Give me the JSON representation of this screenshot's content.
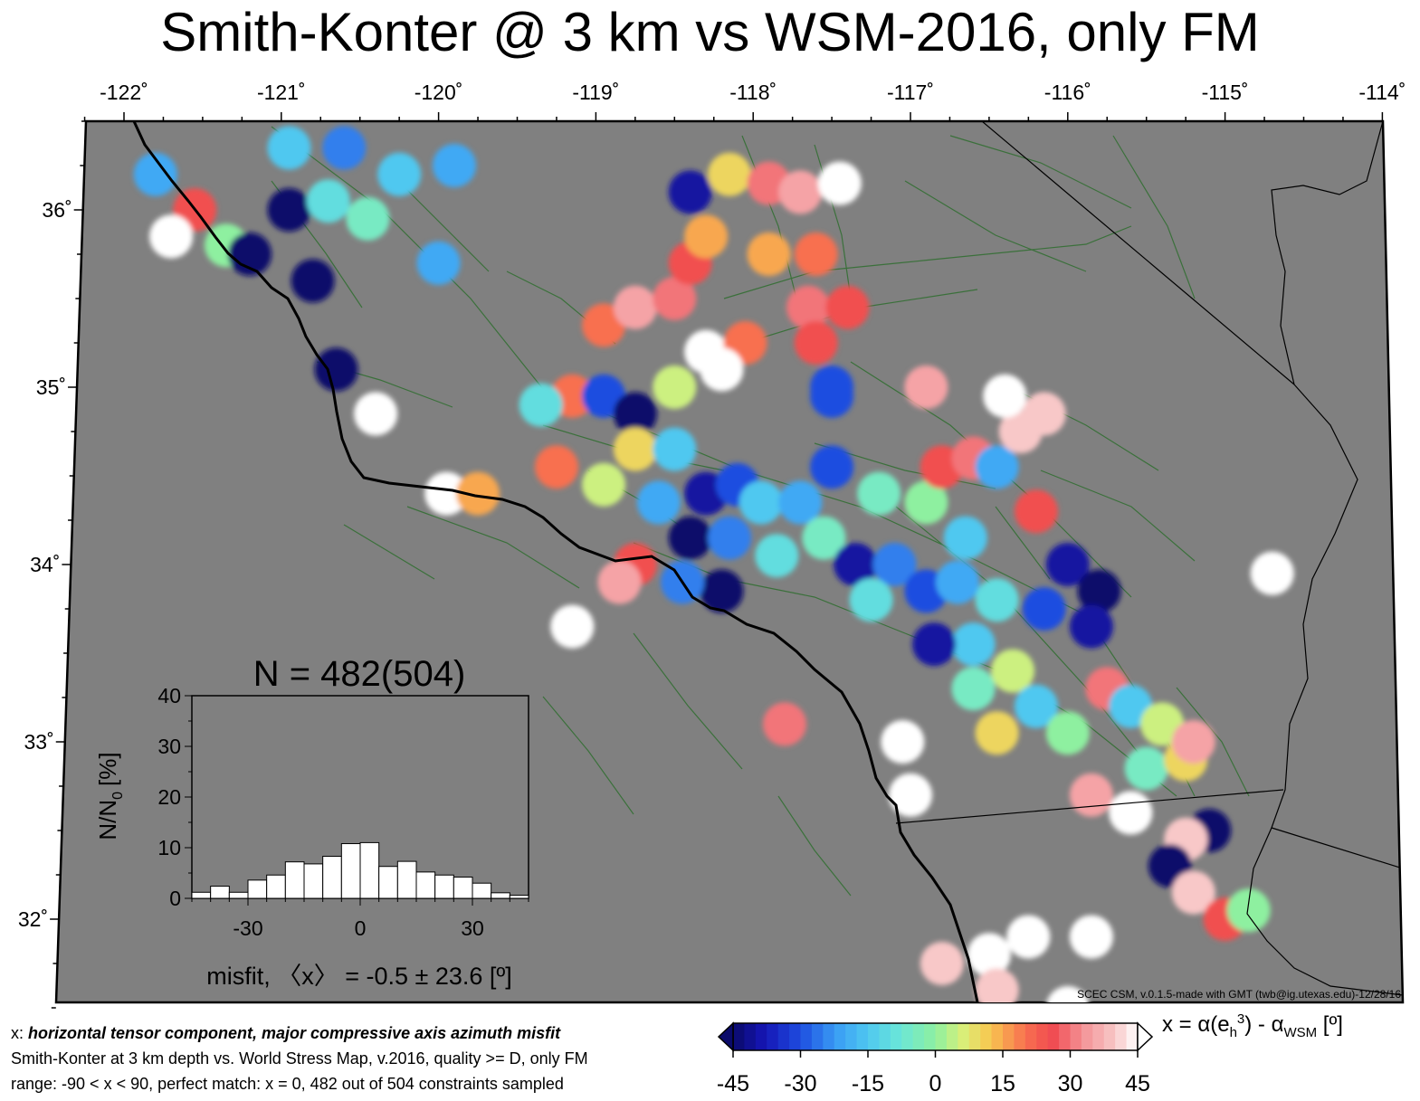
{
  "title": "Smith-Konter @ 3 km vs WSM-2016, only FM",
  "map": {
    "lon_range": [
      -122.25,
      -113.94
    ],
    "lat_range": [
      31.5,
      36.5
    ],
    "lon_ticks": [
      {
        "value": -122,
        "label": "-122˚"
      },
      {
        "value": -121,
        "label": "-121˚"
      },
      {
        "value": -120,
        "label": "-120˚"
      },
      {
        "value": -119,
        "label": "-119˚"
      },
      {
        "value": -118,
        "label": "-118˚"
      },
      {
        "value": -117,
        "label": "-117˚"
      },
      {
        "value": -116,
        "label": "-116˚"
      },
      {
        "value": -115,
        "label": "-115˚"
      },
      {
        "value": -114,
        "label": "-114˚"
      }
    ],
    "lat_ticks": [
      {
        "value": 36,
        "label": "36˚"
      },
      {
        "value": 35,
        "label": "35˚"
      },
      {
        "value": 34,
        "label": "34˚"
      },
      {
        "value": 33,
        "label": "33˚"
      },
      {
        "value": 32,
        "label": "32˚"
      }
    ],
    "background_color": "#808080",
    "land_ocean_color": "#808080",
    "fault_color": "#2f6e2f",
    "coast_color": "#000000",
    "credit": "SCEC CSM, v.0.1.5-made with GMT (twb@ig.utexas.edu)-12/28/16"
  },
  "misfit_patches": [
    {
      "lon": -121.8,
      "lat": 36.2,
      "value": -20
    },
    {
      "lon": -121.55,
      "lat": 36.0,
      "value": 25
    },
    {
      "lon": -121.7,
      "lat": 35.85,
      "value": 45
    },
    {
      "lon": -121.35,
      "lat": 35.8,
      "value": 0
    },
    {
      "lon": -121.2,
      "lat": 35.75,
      "value": -45
    },
    {
      "lon": -120.95,
      "lat": 36.35,
      "value": -15
    },
    {
      "lon": -120.6,
      "lat": 36.35,
      "value": -25
    },
    {
      "lon": -120.95,
      "lat": 36.0,
      "value": -45
    },
    {
      "lon": -120.7,
      "lat": 36.05,
      "value": -10
    },
    {
      "lon": -120.45,
      "lat": 35.95,
      "value": -5
    },
    {
      "lon": -120.25,
      "lat": 36.2,
      "value": -15
    },
    {
      "lon": -119.9,
      "lat": 36.25,
      "value": -20
    },
    {
      "lon": -120.0,
      "lat": 35.7,
      "value": -20
    },
    {
      "lon": -120.8,
      "lat": 35.6,
      "value": -45
    },
    {
      "lon": -120.65,
      "lat": 35.1,
      "value": -45
    },
    {
      "lon": -120.4,
      "lat": 34.85,
      "value": 45
    },
    {
      "lon": -119.95,
      "lat": 34.4,
      "value": 45
    },
    {
      "lon": -119.75,
      "lat": 34.4,
      "value": 15
    },
    {
      "lon": -118.95,
      "lat": 35.35,
      "value": 20
    },
    {
      "lon": -118.75,
      "lat": 35.45,
      "value": 35
    },
    {
      "lon": -118.5,
      "lat": 35.5,
      "value": 30
    },
    {
      "lon": -118.4,
      "lat": 35.7,
      "value": 25
    },
    {
      "lon": -118.3,
      "lat": 35.85,
      "value": 15
    },
    {
      "lon": -118.4,
      "lat": 36.1,
      "value": -40
    },
    {
      "lon": -118.15,
      "lat": 36.2,
      "value": 10
    },
    {
      "lon": -117.9,
      "lat": 36.15,
      "value": 30
    },
    {
      "lon": -117.7,
      "lat": 36.1,
      "value": 35
    },
    {
      "lon": -117.6,
      "lat": 35.75,
      "value": 20
    },
    {
      "lon": -117.9,
      "lat": 35.75,
      "value": 15
    },
    {
      "lon": -117.65,
      "lat": 35.45,
      "value": 30
    },
    {
      "lon": -117.4,
      "lat": 35.45,
      "value": 25
    },
    {
      "lon": -117.45,
      "lat": 36.15,
      "value": 45
    },
    {
      "lon": -118.3,
      "lat": 35.2,
      "value": 45
    },
    {
      "lon": -118.05,
      "lat": 35.25,
      "value": 20
    },
    {
      "lon": -117.6,
      "lat": 35.25,
      "value": 25
    },
    {
      "lon": -119.15,
      "lat": 34.95,
      "value": 20
    },
    {
      "lon": -118.95,
      "lat": 34.95,
      "value": -30
    },
    {
      "lon": -118.75,
      "lat": 34.85,
      "value": -45
    },
    {
      "lon": -118.5,
      "lat": 35.0,
      "value": 5
    },
    {
      "lon": -119.35,
      "lat": 34.9,
      "value": -10
    },
    {
      "lon": -117.5,
      "lat": 34.95,
      "value": -30
    },
    {
      "lon": -117.5,
      "lat": 34.55,
      "value": -30
    },
    {
      "lon": -119.25,
      "lat": 34.55,
      "value": 20
    },
    {
      "lon": -118.95,
      "lat": 34.45,
      "value": 5
    },
    {
      "lon": -118.75,
      "lat": 34.65,
      "value": 10
    },
    {
      "lon": -118.5,
      "lat": 34.65,
      "value": -15
    },
    {
      "lon": -118.6,
      "lat": 34.35,
      "value": -20
    },
    {
      "lon": -118.3,
      "lat": 34.4,
      "value": -40
    },
    {
      "lon": -118.1,
      "lat": 34.45,
      "value": -30
    },
    {
      "lon": -118.4,
      "lat": 34.15,
      "value": -45
    },
    {
      "lon": -118.15,
      "lat": 34.15,
      "value": -25
    },
    {
      "lon": -117.95,
      "lat": 34.35,
      "value": -15
    },
    {
      "lon": -117.7,
      "lat": 34.35,
      "value": -20
    },
    {
      "lon": -117.85,
      "lat": 34.05,
      "value": -10
    },
    {
      "lon": -118.2,
      "lat": 33.85,
      "value": -45
    },
    {
      "lon": -118.45,
      "lat": 33.9,
      "value": -25
    },
    {
      "lon": -118.75,
      "lat": 34.0,
      "value": 25
    },
    {
      "lon": -118.85,
      "lat": 33.9,
      "value": 35
    },
    {
      "lon": -117.55,
      "lat": 34.15,
      "value": -5
    },
    {
      "lon": -117.35,
      "lat": 34.0,
      "value": -40
    },
    {
      "lon": -117.1,
      "lat": 34.0,
      "value": -25
    },
    {
      "lon": -117.25,
      "lat": 33.8,
      "value": -10
    },
    {
      "lon": -116.9,
      "lat": 33.85,
      "value": -30
    },
    {
      "lon": -116.7,
      "lat": 33.9,
      "value": -20
    },
    {
      "lon": -117.2,
      "lat": 34.4,
      "value": -5
    },
    {
      "lon": -116.9,
      "lat": 34.35,
      "value": 0
    },
    {
      "lon": -116.65,
      "lat": 34.15,
      "value": -15
    },
    {
      "lon": -116.8,
      "lat": 34.55,
      "value": 25
    },
    {
      "lon": -116.6,
      "lat": 34.6,
      "value": 30
    },
    {
      "lon": -116.45,
      "lat": 34.55,
      "value": -20
    },
    {
      "lon": -116.3,
      "lat": 34.75,
      "value": 40
    },
    {
      "lon": -116.15,
      "lat": 34.85,
      "value": 40
    },
    {
      "lon": -116.9,
      "lat": 35.0,
      "value": 35
    },
    {
      "lon": -116.4,
      "lat": 34.95,
      "value": 45
    },
    {
      "lon": -116.2,
      "lat": 34.3,
      "value": 25
    },
    {
      "lon": -116.0,
      "lat": 34.0,
      "value": -40
    },
    {
      "lon": -115.8,
      "lat": 33.85,
      "value": -45
    },
    {
      "lon": -116.15,
      "lat": 33.75,
      "value": -30
    },
    {
      "lon": -115.85,
      "lat": 33.65,
      "value": -40
    },
    {
      "lon": -116.45,
      "lat": 33.8,
      "value": -10
    },
    {
      "lon": -116.6,
      "lat": 33.55,
      "value": -15
    },
    {
      "lon": -116.85,
      "lat": 33.55,
      "value": -40
    },
    {
      "lon": -116.6,
      "lat": 33.3,
      "value": -5
    },
    {
      "lon": -116.35,
      "lat": 33.4,
      "value": 5
    },
    {
      "lon": -116.2,
      "lat": 33.2,
      "value": -15
    },
    {
      "lon": -116.45,
      "lat": 33.05,
      "value": 10
    },
    {
      "lon": -116.0,
      "lat": 33.05,
      "value": 0
    },
    {
      "lon": -115.75,
      "lat": 33.3,
      "value": 30
    },
    {
      "lon": -115.6,
      "lat": 33.2,
      "value": -15
    },
    {
      "lon": -115.4,
      "lat": 33.1,
      "value": 5
    },
    {
      "lon": -115.5,
      "lat": 32.85,
      "value": -5
    },
    {
      "lon": -115.25,
      "lat": 32.9,
      "value": 10
    },
    {
      "lon": -115.2,
      "lat": 33.0,
      "value": 35
    },
    {
      "lon": -115.85,
      "lat": 32.7,
      "value": 35
    },
    {
      "lon": -115.6,
      "lat": 32.6,
      "value": 45
    },
    {
      "lon": -115.1,
      "lat": 32.5,
      "value": -45
    },
    {
      "lon": -115.25,
      "lat": 32.45,
      "value": 40
    },
    {
      "lon": -115.35,
      "lat": 32.3,
      "value": -45
    },
    {
      "lon": -115.2,
      "lat": 32.15,
      "value": 40
    },
    {
      "lon": -115.0,
      "lat": 32.0,
      "value": 25
    },
    {
      "lon": -114.85,
      "lat": 32.05,
      "value": 0
    },
    {
      "lon": -117.0,
      "lat": 32.7,
      "value": 45
    },
    {
      "lon": -117.8,
      "lat": 33.1,
      "value": 30
    },
    {
      "lon": -119.15,
      "lat": 33.65,
      "value": 45
    },
    {
      "lon": -117.05,
      "lat": 33.0,
      "value": 45
    },
    {
      "lon": -114.7,
      "lat": 33.95,
      "value": 45
    },
    {
      "lon": -118.2,
      "lat": 35.1,
      "value": 45
    },
    {
      "lon": -117.5,
      "lat": 35.0,
      "value": -30
    },
    {
      "lon": -116.5,
      "lat": 31.8,
      "value": 45
    },
    {
      "lon": -116.25,
      "lat": 31.9,
      "value": 45
    },
    {
      "lon": -115.85,
      "lat": 31.9,
      "value": 45
    },
    {
      "lon": -116.8,
      "lat": 31.75,
      "value": 40
    },
    {
      "lon": -116.45,
      "lat": 31.6,
      "value": 40
    },
    {
      "lon": -116.0,
      "lat": 31.5,
      "value": 45
    }
  ],
  "histogram": {
    "title": "N = 482(504)",
    "ylabel_main": "N/N",
    "ylabel_sub": "0",
    "ylabel_unit": "[%]",
    "xlabel": "misfit, 〈x〉 = -0.5 ± 23.6 [º]",
    "xlim": [
      -45,
      45
    ],
    "ylim": [
      0,
      40
    ],
    "xticks": [
      -30,
      0,
      30
    ],
    "yticks": [
      0,
      10,
      20,
      30,
      40
    ],
    "bin_width": 5,
    "bins": [
      {
        "start": -45,
        "value": 1.2
      },
      {
        "start": -40,
        "value": 2.4
      },
      {
        "start": -35,
        "value": 1.2
      },
      {
        "start": -30,
        "value": 3.6
      },
      {
        "start": -25,
        "value": 4.6
      },
      {
        "start": -20,
        "value": 7.2
      },
      {
        "start": -15,
        "value": 6.8
      },
      {
        "start": -10,
        "value": 8.3
      },
      {
        "start": -5,
        "value": 10.8
      },
      {
        "start": 0,
        "value": 11.0
      },
      {
        "start": 5,
        "value": 6.3
      },
      {
        "start": 10,
        "value": 7.3
      },
      {
        "start": 15,
        "value": 5.2
      },
      {
        "start": 20,
        "value": 4.6
      },
      {
        "start": 25,
        "value": 4.2
      },
      {
        "start": 30,
        "value": 3.0
      },
      {
        "start": 35,
        "value": 1.1
      },
      {
        "start": 40,
        "value": 0.6
      }
    ]
  },
  "caption": {
    "line1_prefix": "x: ",
    "line1_italic": "horizontal tensor component, major compressive axis azimuth misfit",
    "line2": "Smith-Konter at 3 km depth vs.  World Stress Map, v.2016, quality >= D, only FM",
    "line3": "range: -90 < x < 90, perfect match: x = 0, 482 out of 504 constraints sampled"
  },
  "colorbar": {
    "ticks": [
      -45,
      -30,
      -15,
      0,
      15,
      30,
      45
    ],
    "tick_labels": [
      "-45",
      "-30",
      "-15",
      "0",
      "15",
      "30",
      "45"
    ],
    "label_prefix": "x = α(e",
    "label_sub": "h",
    "label_sup": "3",
    "label_mid": ") - α",
    "label_sub2": "WSM",
    "label_suffix": " [º]",
    "stops": [
      {
        "v": -45,
        "c": "#0a0a6a"
      },
      {
        "v": -38,
        "c": "#1515b5"
      },
      {
        "v": -30,
        "c": "#1e4de0"
      },
      {
        "v": -22,
        "c": "#3a9df5"
      },
      {
        "v": -15,
        "c": "#4fc8f0"
      },
      {
        "v": -8,
        "c": "#6ae6d8"
      },
      {
        "v": 0,
        "c": "#8ef0a0"
      },
      {
        "v": 6,
        "c": "#d8f07a"
      },
      {
        "v": 12,
        "c": "#f8c850"
      },
      {
        "v": 20,
        "c": "#f87050"
      },
      {
        "v": 26,
        "c": "#f04a50"
      },
      {
        "v": 33,
        "c": "#f49498"
      },
      {
        "v": 40,
        "c": "#f8c8c8"
      },
      {
        "v": 45,
        "c": "#ffffff"
      }
    ]
  }
}
